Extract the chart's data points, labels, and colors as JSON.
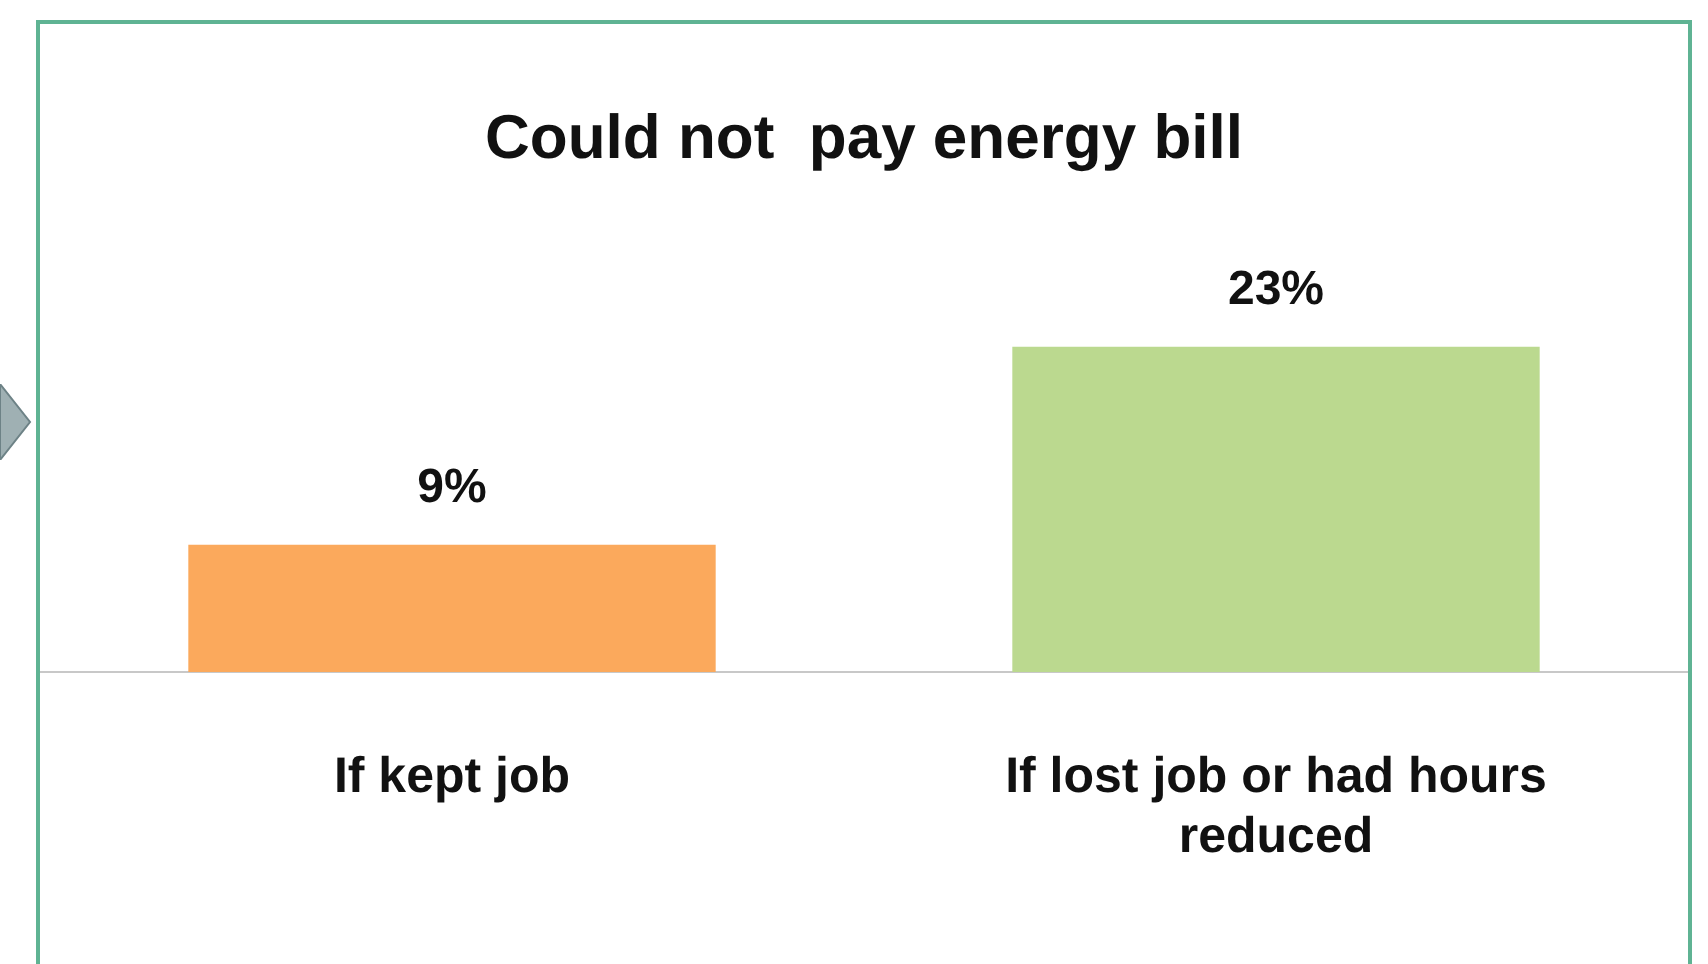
{
  "chart_data": {
    "type": "bar",
    "title": "Could not  pay energy bill",
    "categories": [
      "If kept job",
      "If lost job or had hours reduced"
    ],
    "values": [
      9,
      23
    ],
    "colors": [
      "#fba95c",
      "#bbd98f"
    ],
    "value_labels": [
      "9%",
      "23%"
    ],
    "legend": false
  }
}
